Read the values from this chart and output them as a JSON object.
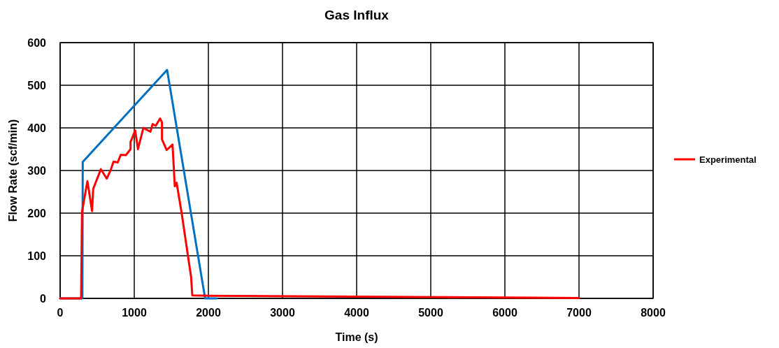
{
  "chart_data": {
    "type": "line",
    "title": "Gas Influx",
    "xlabel": "Time (s)",
    "ylabel": "Flow Rate (scf/min)",
    "xlim": [
      0,
      8000
    ],
    "xticks": [
      0,
      1000,
      2000,
      3000,
      4000,
      5000,
      6000,
      7000,
      8000
    ],
    "ylim": [
      0,
      600
    ],
    "yticks": [
      0,
      100,
      200,
      300,
      400,
      500,
      600
    ],
    "grid": true,
    "legend": "right",
    "marker": "none",
    "line_style": "solid",
    "series": [
      {
        "color": "#0070c0",
        "x": [
          0,
          300,
          305,
          1443,
          1956,
          2113
        ],
        "values": [
          0,
          0,
          320,
          536,
          0,
          0
        ]
      },
      {
        "name": "Experimental",
        "color": "#ff0000",
        "x": [
          0,
          283,
          295,
          368,
          431,
          446,
          550,
          629,
          682,
          720,
          777,
          818,
          887,
          950,
          950,
          1013,
          1050,
          1123,
          1217,
          1248,
          1289,
          1349,
          1374,
          1374,
          1437,
          1516,
          1547,
          1572,
          1642,
          1720,
          1767,
          1783,
          2000,
          7000
        ],
        "values": [
          0,
          0,
          203,
          275,
          205,
          257,
          303,
          281,
          301,
          321,
          319,
          337,
          336,
          350,
          367,
          394,
          350,
          400,
          391,
          409,
          405,
          422,
          413,
          373,
          348,
          361,
          263,
          271,
          197,
          105,
          50,
          7,
          6,
          1
        ]
      }
    ]
  }
}
